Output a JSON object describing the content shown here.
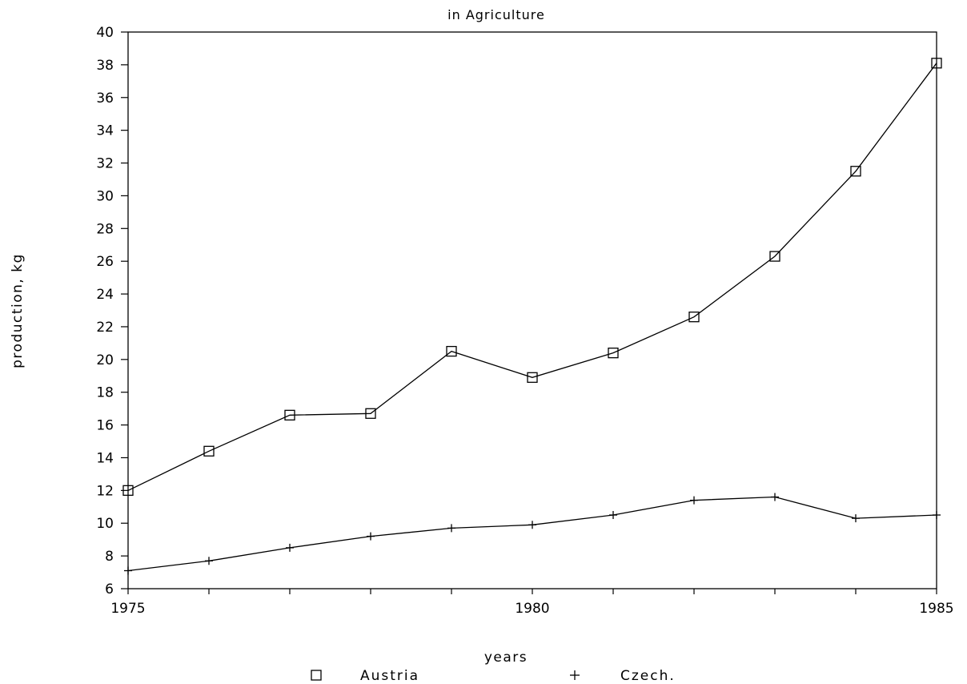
{
  "chart_data": {
    "type": "line",
    "title": "in Agriculture",
    "xlabel": "years",
    "ylabel": "production, kg",
    "x": [
      1975,
      1976,
      1977,
      1978,
      1979,
      1980,
      1981,
      1982,
      1983,
      1984,
      1985
    ],
    "x_ticks": [
      1975,
      1980,
      1985
    ],
    "x_tick_labels": [
      "1975",
      "1980",
      "1985"
    ],
    "xlim": [
      1975,
      1985
    ],
    "ylim": [
      6,
      40
    ],
    "y_ticks": [
      6,
      8,
      10,
      12,
      14,
      16,
      18,
      20,
      22,
      24,
      26,
      28,
      30,
      32,
      34,
      36,
      38,
      40
    ],
    "y_tick_labels": [
      "6",
      "8",
      "10",
      "12",
      "14",
      "16",
      "18",
      "20",
      "22",
      "24",
      "26",
      "28",
      "30",
      "32",
      "34",
      "36",
      "38",
      "40"
    ],
    "grid": false,
    "legend_position": "bottom",
    "series": [
      {
        "name": "Austria",
        "marker": "square",
        "values": [
          12.0,
          14.4,
          16.6,
          16.7,
          20.5,
          18.9,
          20.4,
          22.6,
          26.3,
          31.5,
          38.1
        ]
      },
      {
        "name": "Czech.",
        "marker": "plus",
        "values": [
          7.1,
          7.7,
          8.5,
          9.2,
          9.7,
          9.9,
          10.5,
          11.4,
          11.6,
          10.3,
          10.5
        ]
      }
    ],
    "legend_markers": [
      "□",
      "+"
    ],
    "line_color": "#000000"
  }
}
